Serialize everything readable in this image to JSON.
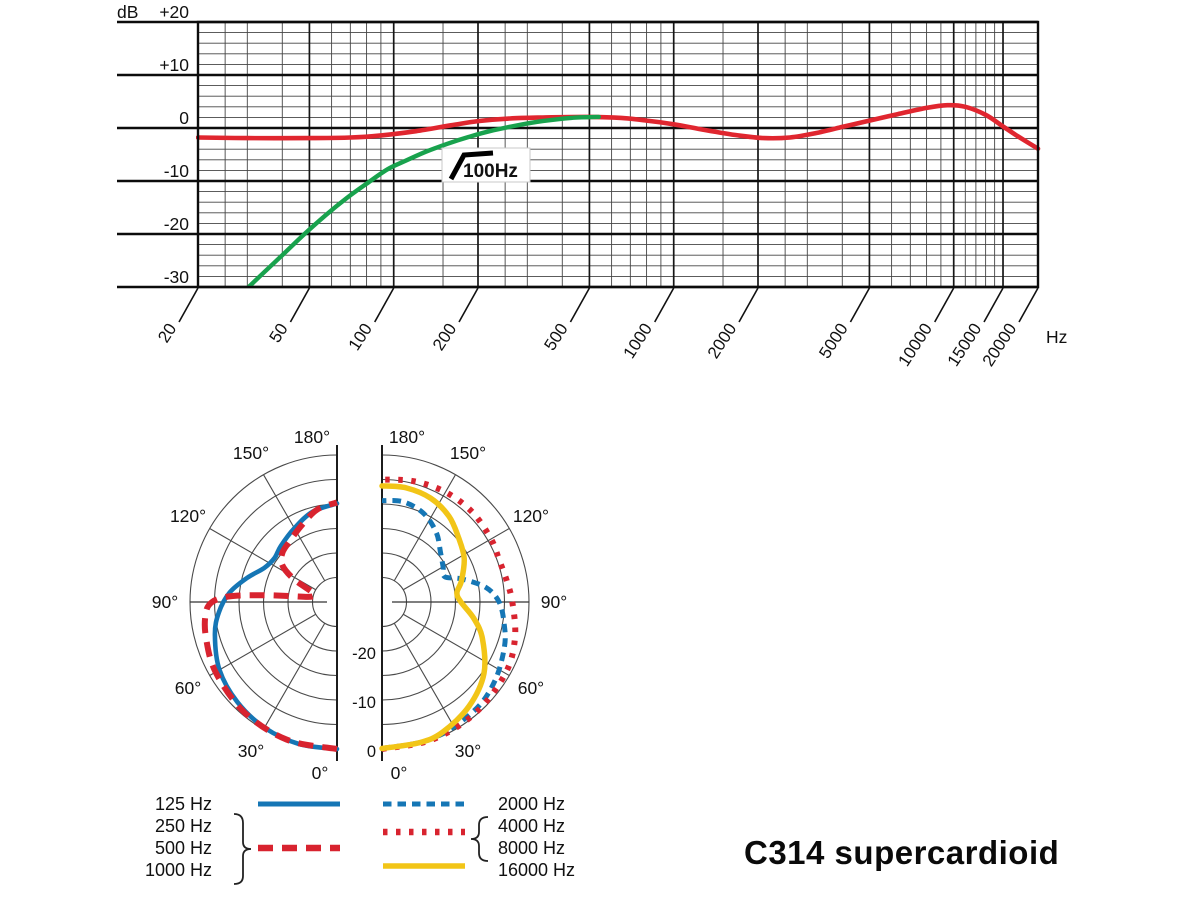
{
  "title": "C314 supercardioid",
  "chart_data": [
    {
      "id": "frequency_response",
      "type": "line",
      "x_scale": "log",
      "x_range": [
        20,
        20000
      ],
      "x_unit": "Hz",
      "y_unit": "dB",
      "y_range": [
        -30,
        20
      ],
      "y_major_step": 10,
      "y_minor_step": 2,
      "grid": "on",
      "y_ticks": [
        {
          "v": 20,
          "label": "+20"
        },
        {
          "v": 10,
          "label": "+10"
        },
        {
          "v": 0,
          "label": "0"
        },
        {
          "v": -10,
          "label": "-10"
        },
        {
          "v": -20,
          "label": "-20"
        },
        {
          "v": -30,
          "label": "-30"
        }
      ],
      "x_labeled_ticks": [
        {
          "v": 20,
          "label": "20"
        },
        {
          "v": 50,
          "label": "50"
        },
        {
          "v": 100,
          "label": "100"
        },
        {
          "v": 200,
          "label": "200"
        },
        {
          "v": 500,
          "label": "500"
        },
        {
          "v": 1000,
          "label": "1000"
        },
        {
          "v": 2000,
          "label": "2000"
        },
        {
          "v": 5000,
          "label": "5000"
        },
        {
          "v": 10000,
          "label": "10000"
        },
        {
          "v": 15000,
          "label": "15000"
        },
        {
          "v": 20000,
          "label": "20000"
        }
      ],
      "x_minor_ticks": [
        25,
        30,
        40,
        60,
        70,
        80,
        90,
        150,
        250,
        300,
        400,
        600,
        700,
        800,
        900,
        1500,
        2500,
        3000,
        4000,
        6000,
        7000,
        8000,
        9000,
        11000,
        12000,
        13000,
        14000
      ],
      "annotation": {
        "icon": "highpass-filter-icon",
        "label": "100Hz"
      },
      "series": [
        {
          "name": "on-axis-response",
          "color": "#e0262f",
          "w": 4.6,
          "points": [
            [
              20,
              -1.8
            ],
            [
              30,
              -1.9
            ],
            [
              50,
              -1.9
            ],
            [
              70,
              -1.8
            ],
            [
              90,
              -1.4
            ],
            [
              120,
              -0.6
            ],
            [
              160,
              0.5
            ],
            [
              200,
              1.3
            ],
            [
              260,
              1.8
            ],
            [
              350,
              2.0
            ],
            [
              500,
              2.1
            ],
            [
              650,
              1.9
            ],
            [
              800,
              1.4
            ],
            [
              1000,
              0.7
            ],
            [
              1300,
              -0.4
            ],
            [
              1700,
              -1.4
            ],
            [
              2100,
              -1.9
            ],
            [
              2600,
              -1.8
            ],
            [
              3200,
              -1.0
            ],
            [
              4000,
              0.2
            ],
            [
              5000,
              1.4
            ],
            [
              6300,
              2.6
            ],
            [
              8000,
              3.8
            ],
            [
              9500,
              4.3
            ],
            [
              11000,
              4.0
            ],
            [
              13000,
              2.5
            ],
            [
              15000,
              0.3
            ],
            [
              17000,
              -1.6
            ],
            [
              20000,
              -3.9
            ]
          ]
        },
        {
          "name": "response-with-100hz-lowcut",
          "color": "#18a24d",
          "w": 4.4,
          "points": [
            [
              29,
              -31
            ],
            [
              34,
              -27.5
            ],
            [
              40,
              -24
            ],
            [
              48,
              -20
            ],
            [
              57,
              -16.5
            ],
            [
              68,
              -13.2
            ],
            [
              80,
              -10.5
            ],
            [
              95,
              -7.8
            ],
            [
              110,
              -6.2
            ],
            [
              130,
              -4.5
            ],
            [
              155,
              -3.0
            ],
            [
              185,
              -1.7
            ],
            [
              220,
              -0.6
            ],
            [
              270,
              0.4
            ],
            [
              340,
              1.3
            ],
            [
              430,
              1.9
            ],
            [
              540,
              2.1
            ]
          ]
        }
      ]
    },
    {
      "id": "polar_pattern",
      "type": "polar",
      "rings_db": [
        -25,
        -20,
        -15,
        -10,
        -5,
        0
      ],
      "db_floor": -30,
      "ring_labels": [
        {
          "db": 0,
          "label": "0"
        },
        {
          "db": -10,
          "label": "-10"
        },
        {
          "db": -20,
          "label": "-20"
        }
      ],
      "angle_labels": [
        {
          "deg": 0,
          "label": "0°"
        },
        {
          "deg": 30,
          "label": "30°"
        },
        {
          "deg": 60,
          "label": "60°"
        },
        {
          "deg": 90,
          "label": "90°"
        },
        {
          "deg": 120,
          "label": "120°"
        },
        {
          "deg": 150,
          "label": "150°"
        },
        {
          "deg": 180,
          "label": "180°"
        }
      ],
      "halves": {
        "left": {
          "series": [
            {
              "name": "125 Hz",
              "color": "#1576b5",
              "dash": "solid",
              "w": 4.6,
              "points": [
                [
                  0,
                  0
                ],
                [
                  15,
                  0
                ],
                [
                  30,
                  -0.4
                ],
                [
                  45,
                  -1.2
                ],
                [
                  60,
                  -2.3
                ],
                [
                  75,
                  -4.2
                ],
                [
                  85,
                  -5.8
                ],
                [
                  95,
                  -8.0
                ],
                [
                  105,
                  -11.0
                ],
                [
                  115,
                  -13.6
                ],
                [
                  125,
                  -14.4
                ],
                [
                  135,
                  -13.8
                ],
                [
                  150,
                  -12.6
                ],
                [
                  165,
                  -10.9
                ],
                [
                  180,
                  -9.9
                ]
              ]
            },
            {
              "name": "250 / 500 / 1000 Hz",
              "color": "#d8232f",
              "dash": "long-dash",
              "w": 6,
              "points": [
                [
                  0,
                  0
                ],
                [
                  20,
                  -0.1
                ],
                [
                  40,
                  -0.6
                ],
                [
                  60,
                  -1.4
                ],
                [
                  75,
                  -2.3
                ],
                [
                  85,
                  -3.1
                ],
                [
                  90,
                  -4.5
                ],
                [
                  93,
                  -8.0
                ],
                [
                  95,
                  -14.0
                ],
                [
                  97,
                  -20.0
                ],
                [
                  100,
                  -24.0
                ],
                [
                  106,
                  -25.2
                ],
                [
                  112,
                  -24.5
                ],
                [
                  118,
                  -20.0
                ],
                [
                  124,
                  -16.5
                ],
                [
                  132,
                  -15.0
                ],
                [
                  142,
                  -14.3
                ],
                [
                  155,
                  -12.8
                ],
                [
                  168,
                  -10.7
                ],
                [
                  180,
                  -9.7
                ]
              ]
            }
          ]
        },
        "right": {
          "series": [
            {
              "name": "2000 Hz",
              "color": "#1576b5",
              "dash": "short-dash",
              "w": 5,
              "points": [
                [
                  0,
                  -0.1
                ],
                [
                  20,
                  -0.3
                ],
                [
                  40,
                  -0.9
                ],
                [
                  55,
                  -1.9
                ],
                [
                  70,
                  -3.4
                ],
                [
                  80,
                  -4.7
                ],
                [
                  90,
                  -6.1
                ],
                [
                  98,
                  -8.6
                ],
                [
                  106,
                  -13.0
                ],
                [
                  112,
                  -16.2
                ],
                [
                  120,
                  -15.6
                ],
                [
                  130,
                  -14.4
                ],
                [
                  142,
                  -12.0
                ],
                [
                  155,
                  -10.0
                ],
                [
                  168,
                  -9.1
                ],
                [
                  180,
                  -9.3
                ]
              ]
            },
            {
              "name": "4000 / 8000 Hz",
              "color": "#d8232f",
              "dash": "dot",
              "w": 6,
              "points": [
                [
                  0,
                  0
                ],
                [
                  20,
                  -0.1
                ],
                [
                  40,
                  -0.4
                ],
                [
                  60,
                  -0.9
                ],
                [
                  75,
                  -1.9
                ],
                [
                  90,
                  -3.4
                ],
                [
                  100,
                  -4.2
                ],
                [
                  110,
                  -4.6
                ],
                [
                  120,
                  -4.3
                ],
                [
                  135,
                  -4.0
                ],
                [
                  150,
                  -4.1
                ],
                [
                  165,
                  -4.5
                ],
                [
                  180,
                  -5.0
                ]
              ]
            },
            {
              "name": "16000 Hz",
              "color": "#f2c517",
              "dash": "solid",
              "w": 5.5,
              "points": [
                [
                  0,
                  -0.1
                ],
                [
                  15,
                  -0.3
                ],
                [
                  25,
                  -0.7
                ],
                [
                  40,
                  -2.3
                ],
                [
                  55,
                  -4.6
                ],
                [
                  70,
                  -8.2
                ],
                [
                  80,
                  -11.0
                ],
                [
                  90,
                  -13.9
                ],
                [
                  97,
                  -14.6
                ],
                [
                  105,
                  -13.2
                ],
                [
                  118,
                  -11.0
                ],
                [
                  130,
                  -9.6
                ],
                [
                  142,
                  -7.8
                ],
                [
                  155,
                  -6.6
                ],
                [
                  168,
                  -6.2
                ],
                [
                  180,
                  -6.3
                ]
              ]
            }
          ]
        }
      }
    }
  ],
  "legend": {
    "left_labels": [
      "125 Hz",
      "250 Hz",
      "500 Hz",
      "1000 Hz"
    ],
    "right_labels": [
      "2000 Hz",
      "4000 Hz",
      "8000 Hz",
      "16000 Hz"
    ],
    "swatches": [
      {
        "name": "125 Hz",
        "color": "#1576b5",
        "dash": "solid",
        "col": "left",
        "row": 0,
        "w": 5
      },
      {
        "name": "250-1000 Hz",
        "color": "#d8232f",
        "dash": "long-dash",
        "col": "left",
        "row": 2,
        "w": 6.5
      },
      {
        "name": "2000 Hz",
        "color": "#1576b5",
        "dash": "short-dash",
        "col": "right",
        "row": 0,
        "w": 5
      },
      {
        "name": "4000-8000 Hz",
        "color": "#d8232f",
        "dash": "dot",
        "col": "right",
        "row": 1.27,
        "w": 6.5
      },
      {
        "name": "16000 Hz",
        "color": "#f2c517",
        "dash": "solid",
        "col": "right",
        "row": 2.82,
        "w": 5.5
      }
    ]
  }
}
